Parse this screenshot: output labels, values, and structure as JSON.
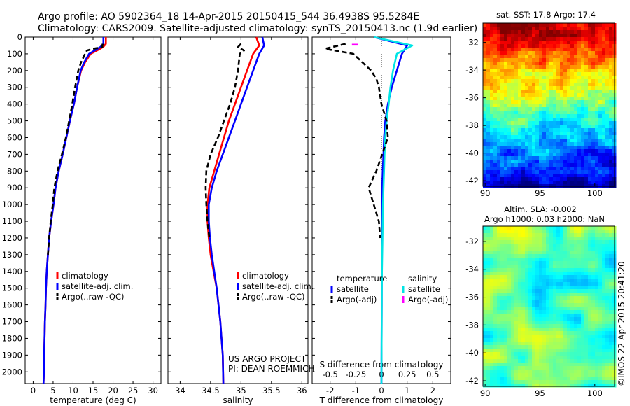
{
  "header": {
    "line1": "Argo profile: AO 5902364_18 14-Apr-2015 20150415_544 36.4938S 95.5284E",
    "line2": "Climatology: CARS2009. Satellite-adjusted climatology: synTS_20150413.nc (1.9d earlier)"
  },
  "colors": {
    "climatology": "#ff0000",
    "satellite": "#0000ff",
    "argo": "#000000",
    "salinity_satellite": "#00e5e5",
    "salinity_argo": "#ff00ff"
  },
  "credit": {
    "line1": "US ARGO PROJECT",
    "line2": "PI: DEAN ROEMMICH"
  },
  "watermark": "©IMOS 22-Apr-2015 20:41:20",
  "sst_map": {
    "title": "sat. SST: 17.8 Argo: 17.4",
    "xticks": [
      "90",
      "95",
      "100"
    ],
    "yticks": [
      "-32",
      "-34",
      "-36",
      "-38",
      "-40",
      "-42"
    ]
  },
  "sla_map": {
    "title1": "Altim. SLA: -0.002",
    "title2": "Argo h1000: 0.03 h2000: NaN",
    "xticks": [
      "90",
      "95",
      "100"
    ],
    "yticks": [
      "-32",
      "-34",
      "-36",
      "-38",
      "-40",
      "-42"
    ]
  },
  "chart_data": [
    {
      "type": "line",
      "name": "temperature-profile",
      "xlabel": "temperature (deg C)",
      "xlim": [
        -2,
        32
      ],
      "ylim": [
        2070,
        0
      ],
      "xticks": [
        0,
        5,
        10,
        15,
        20,
        25,
        30
      ],
      "yticks": [
        0,
        100,
        200,
        300,
        400,
        500,
        600,
        700,
        800,
        900,
        1000,
        1100,
        1200,
        1300,
        1400,
        1500,
        1600,
        1700,
        1800,
        1900,
        2000
      ],
      "legend": [
        "climatology",
        "satellite-adj. clim.",
        "Argo(..raw -QC)"
      ],
      "series": [
        {
          "name": "climatology",
          "color": "#ff0000",
          "dash": "solid",
          "x": [
            18.2,
            18.2,
            17.5,
            16.0,
            14.4,
            13.0,
            12.0,
            11.0,
            10.2,
            9.2,
            8.3,
            7.4,
            6.4,
            5.6,
            5.1,
            4.5,
            4.0,
            3.7,
            3.4,
            3.2,
            3.1,
            2.95,
            2.85,
            2.75,
            2.7,
            2.65,
            2.6
          ],
          "y": [
            0,
            40,
            60,
            80,
            100,
            150,
            200,
            300,
            400,
            500,
            600,
            700,
            800,
            900,
            1000,
            1100,
            1200,
            1300,
            1400,
            1500,
            1600,
            1700,
            1800,
            1900,
            2000,
            2040,
            2070
          ]
        },
        {
          "name": "satellite-adj. clim.",
          "color": "#0000ff",
          "dash": "solid",
          "x": [
            17.6,
            17.6,
            16.8,
            15.4,
            14.0,
            12.8,
            11.9,
            11.0,
            10.2,
            9.2,
            8.3,
            7.4,
            6.4,
            5.6,
            5.1,
            4.5,
            4.0,
            3.7,
            3.4,
            3.2,
            3.1,
            2.95,
            2.85,
            2.75,
            2.7,
            2.65,
            2.6
          ],
          "y": [
            0,
            40,
            60,
            80,
            100,
            150,
            200,
            300,
            400,
            500,
            600,
            700,
            800,
            900,
            1000,
            1100,
            1200,
            1300,
            1400,
            1500,
            1600,
            1700,
            1800,
            1900,
            2000,
            2040,
            2070
          ]
        },
        {
          "name": "Argo(..raw -QC)",
          "color": "#000000",
          "dash": "dashed",
          "x": [
            17.4,
            17.3,
            15.0,
            13.5,
            13.0,
            12.0,
            11.3,
            10.5,
            9.8,
            9.0,
            8.2,
            7.2,
            6.1,
            5.3,
            4.9,
            4.4,
            4.0,
            3.7
          ],
          "y": [
            40,
            60,
            70,
            80,
            100,
            150,
            200,
            300,
            400,
            500,
            600,
            700,
            800,
            900,
            1000,
            1100,
            1200,
            1300
          ]
        }
      ]
    },
    {
      "type": "line",
      "name": "salinity-profile",
      "xlabel": "salinity",
      "xlim": [
        33.8,
        36.1
      ],
      "ylim": [
        2070,
        0
      ],
      "xticks": [
        34,
        34.5,
        35,
        35.5,
        36
      ],
      "legend": [
        "climatology",
        "satellite-adj. clim.",
        "Argo(..raw -QC)"
      ],
      "series": [
        {
          "name": "climatology",
          "color": "#ff0000",
          "dash": "solid",
          "x": [
            35.25,
            35.3,
            35.2,
            35.1,
            35.0,
            34.9,
            34.8,
            34.72,
            34.64,
            34.56,
            34.48,
            34.45,
            34.45,
            34.47,
            34.5,
            34.55,
            34.6,
            34.63,
            34.66,
            34.68,
            34.7,
            34.71
          ],
          "y": [
            0,
            50,
            100,
            200,
            300,
            400,
            500,
            600,
            700,
            800,
            900,
            1000,
            1100,
            1200,
            1300,
            1400,
            1500,
            1600,
            1700,
            1800,
            1900,
            2070
          ]
        },
        {
          "name": "satellite-adj. clim.",
          "color": "#0000ff",
          "dash": "solid",
          "x": [
            35.35,
            35.38,
            35.3,
            35.2,
            35.1,
            35.0,
            34.9,
            34.8,
            34.7,
            34.6,
            34.52,
            34.47,
            34.47,
            34.49,
            34.52,
            34.56,
            34.6,
            34.63,
            34.66,
            34.68,
            34.7,
            34.71
          ],
          "y": [
            0,
            50,
            100,
            200,
            300,
            400,
            500,
            600,
            700,
            800,
            900,
            1000,
            1100,
            1200,
            1300,
            1400,
            1500,
            1600,
            1700,
            1800,
            1900,
            2070
          ]
        },
        {
          "name": "Argo(..raw -QC)",
          "color": "#000000",
          "dash": "dashed",
          "x": [
            35.0,
            34.95,
            35.05,
            34.98,
            34.95,
            34.9,
            34.82,
            34.72,
            34.62,
            34.5,
            34.43,
            34.42,
            34.43,
            34.45,
            34.48
          ],
          "y": [
            40,
            60,
            80,
            100,
            200,
            300,
            400,
            500,
            600,
            700,
            800,
            900,
            1000,
            1100,
            1200
          ]
        }
      ]
    },
    {
      "type": "line",
      "name": "difference-profile",
      "xlabel": "T difference from climatology",
      "xlabel2": "S difference from climatology",
      "xlim": [
        -2.7,
        2.7
      ],
      "ylim": [
        2070,
        0
      ],
      "xticks": [
        -2,
        -1,
        0,
        1,
        2
      ],
      "xticks2": [
        "-0.5",
        "-0.25",
        "0",
        "0.25",
        "0.5"
      ],
      "legend_headers": [
        "temperature",
        "salinity"
      ],
      "legend": [
        "satellite",
        "Argo(-adj)",
        "satellite",
        "Argo(-adj)"
      ],
      "series": [
        {
          "name": "satellite",
          "quantity": "temperature",
          "color": "#0000ff",
          "dash": "solid",
          "x": [
            -0.3,
            1.0,
            0.8,
            0.6,
            0.4,
            0.25,
            0.15,
            0.1,
            0.08,
            0.05,
            0.03,
            0.02,
            0.02,
            0.01,
            0.01,
            0.0
          ],
          "y": [
            0,
            50,
            100,
            200,
            300,
            400,
            500,
            600,
            700,
            800,
            900,
            1000,
            1200,
            1400,
            1600,
            2070
          ]
        },
        {
          "name": "satellite",
          "quantity": "salinity",
          "color": "#00e5e5",
          "dash": "solid",
          "x": [
            -0.3,
            1.2,
            0.6,
            0.45,
            0.35,
            0.28,
            0.2,
            0.15,
            0.12,
            0.1,
            0.08,
            0.06,
            0.04,
            0.02,
            0.01,
            0.0
          ],
          "y": [
            0,
            50,
            100,
            200,
            300,
            400,
            500,
            600,
            700,
            800,
            900,
            1000,
            1200,
            1400,
            1600,
            2070
          ]
        },
        {
          "name": "Argo(-adj)",
          "quantity": "temperature",
          "color": "#000000",
          "dash": "dashed",
          "x": [
            -1.4,
            -2.2,
            -1.1,
            -0.4,
            -0.2,
            -0.1,
            0.0,
            0.2,
            0.25,
            -0.2,
            -0.5,
            -0.3,
            -0.1,
            -0.05
          ],
          "y": [
            40,
            70,
            100,
            200,
            250,
            300,
            400,
            500,
            600,
            800,
            900,
            1000,
            1100,
            1200
          ]
        },
        {
          "name": "Argo(-adj)",
          "quantity": "salinity",
          "color": "#ff00ff",
          "dash": "solid",
          "x": [
            -1.15,
            -0.9
          ],
          "y": [
            45,
            45
          ]
        }
      ]
    }
  ]
}
